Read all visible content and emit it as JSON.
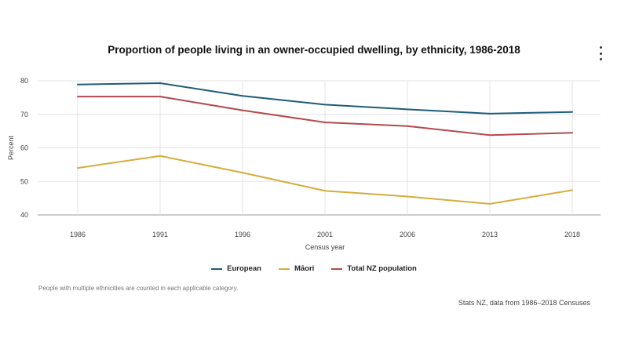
{
  "chart_data": {
    "type": "line",
    "title": "Proportion of people living in an owner-occupied dwelling, by ethnicity, 1986-2018",
    "xlabel": "Census year",
    "ylabel": "Percent",
    "categories": [
      "1986",
      "1991",
      "1996",
      "2001",
      "2006",
      "2013",
      "2018"
    ],
    "ylim": [
      40,
      80
    ],
    "yticks": [
      40,
      50,
      60,
      70,
      80
    ],
    "grid": true,
    "legend_position": "bottom",
    "series": [
      {
        "name": "European",
        "color": "#1f5c77",
        "values": [
          78.9,
          79.3,
          75.5,
          72.9,
          71.5,
          70.2,
          70.7
        ]
      },
      {
        "name": "Māori",
        "color": "#d4ae3c",
        "values": [
          54.0,
          57.6,
          52.6,
          47.2,
          45.5,
          43.3,
          47.4
        ]
      },
      {
        "name": "Total NZ population",
        "color": "#b24a4e",
        "values": [
          75.3,
          75.3,
          71.2,
          67.6,
          66.5,
          63.8,
          64.5
        ]
      }
    ]
  },
  "footnote": "People with multiple ethnicities are counted in each applicable category.",
  "source": "Stats NZ, data from 1986–2018 Censuses",
  "menu_icon": "more-vertical-icon"
}
